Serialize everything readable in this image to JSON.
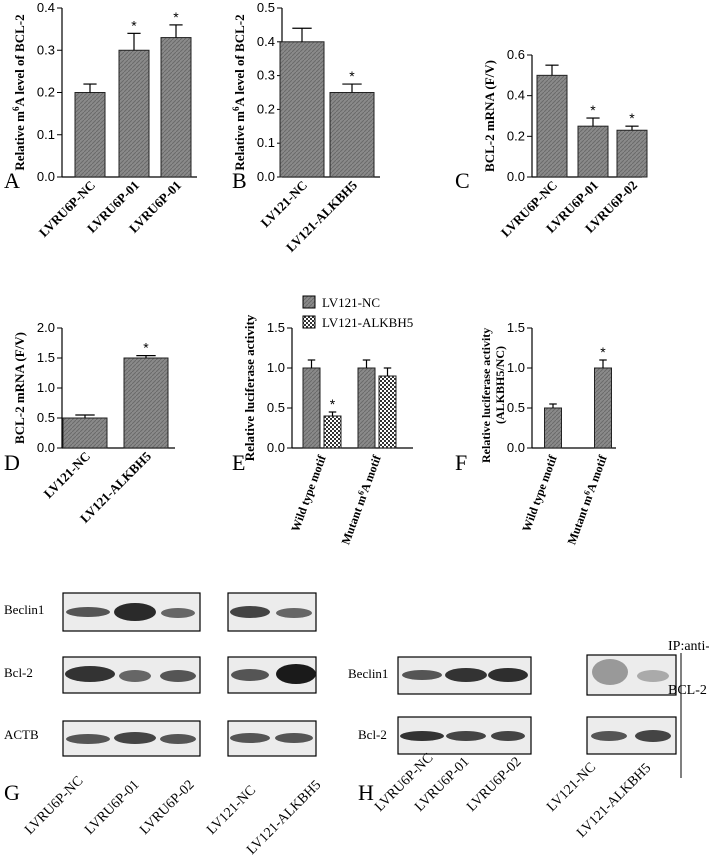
{
  "chart_data": [
    {
      "panel": "A",
      "type": "bar",
      "ylabel_pre": "Relative m",
      "ylabel_sup": "6",
      "ylabel_post": "A level of BCL-2",
      "categories": [
        "LVRU6P-NC",
        "LVRU6P-01",
        "LVRU6P-01"
      ],
      "values": [
        0.2,
        0.3,
        0.33
      ],
      "errors": [
        0.02,
        0.04,
        0.03
      ],
      "significant": [
        false,
        true,
        true
      ],
      "ylim": [
        0,
        0.4
      ],
      "yticks": [
        "0.0",
        "0.1",
        "0.2",
        "0.3",
        "0.4"
      ]
    },
    {
      "panel": "B",
      "type": "bar",
      "ylabel_pre": "Relative m",
      "ylabel_sup": "6",
      "ylabel_post": "A level of BCL-2",
      "categories": [
        "LV121-NC",
        "LV121-ALKBH5"
      ],
      "values": [
        0.4,
        0.25
      ],
      "errors": [
        0.04,
        0.025
      ],
      "significant": [
        false,
        true
      ],
      "ylim": [
        0,
        0.5
      ],
      "yticks": [
        "0.0",
        "0.1",
        "0.2",
        "0.3",
        "0.4",
        "0.5"
      ]
    },
    {
      "panel": "C",
      "type": "bar",
      "ylabel_pre": "BCL-2 mRNA (F/V)",
      "ylabel_sup": "",
      "ylabel_post": "",
      "categories": [
        "LVRU6P-NC",
        "LVRU6P-01",
        "LVRU6P-02"
      ],
      "values": [
        0.5,
        0.25,
        0.23
      ],
      "errors": [
        0.05,
        0.04,
        0.02
      ],
      "significant": [
        false,
        true,
        true
      ],
      "ylim": [
        0,
        0.6
      ],
      "yticks": [
        "0.0",
        "0.2",
        "0.4",
        "0.6"
      ]
    },
    {
      "panel": "D",
      "type": "bar",
      "ylabel_pre": "BCL-2 mRNA (F/V)",
      "ylabel_sup": "",
      "ylabel_post": "",
      "categories": [
        "LV121-NC",
        "LV121-ALKBH5"
      ],
      "values": [
        0.5,
        1.5
      ],
      "errors": [
        0.05,
        0.04
      ],
      "significant": [
        false,
        true
      ],
      "ylim": [
        0,
        2.0
      ],
      "yticks": [
        "0.0",
        "0.5",
        "1.0",
        "1.5",
        "2.0"
      ]
    },
    {
      "panel": "E",
      "type": "bar",
      "ylabel_pre": "Relative luciferase activity",
      "ylabel_sup": "",
      "ylabel_post": "",
      "categories": [
        {
          "pre": "Wild type motif",
          "sup": "",
          "post": ""
        },
        {
          "pre": "Mutant m",
          "sup": "6",
          "post": "A motif"
        }
      ],
      "series": [
        {
          "name": "LV121-NC",
          "values": [
            1.0,
            1.0
          ],
          "errors": [
            0.1,
            0.1
          ],
          "significant": [
            false,
            false
          ]
        },
        {
          "name": "LV121-ALKBH5",
          "values": [
            0.4,
            0.9
          ],
          "errors": [
            0.05,
            0.1
          ],
          "significant": [
            true,
            false
          ]
        }
      ],
      "ylim": [
        0,
        1.5
      ],
      "yticks": [
        "0.0",
        "0.5",
        "1.0",
        "1.5"
      ]
    },
    {
      "panel": "F",
      "type": "bar",
      "ylabel_pre": "Relative luciferase activity",
      "ylabel2": "(ALKBH5/NC)",
      "categories": [
        {
          "pre": "Wild type motif",
          "sup": "",
          "post": ""
        },
        {
          "pre": "Mutant m",
          "sup": "6",
          "post": "A motif"
        }
      ],
      "values": [
        0.5,
        1.0
      ],
      "errors": [
        0.05,
        0.1
      ],
      "significant": [
        false,
        true
      ],
      "ylim": [
        0,
        1.5
      ],
      "yticks": [
        "0.0",
        "0.5",
        "1.0",
        "1.5"
      ]
    }
  ],
  "blot_g": {
    "panel": "G",
    "rows": [
      "Beclin1",
      "Bcl-2",
      "ACTB"
    ],
    "lanes": [
      "LVRU6P-NC",
      "LVRU6P-01",
      "LVRU6P-02",
      "LV121-NC",
      "LV121-ALKBH5"
    ]
  },
  "blot_h": {
    "panel": "H",
    "rows": [
      "Beclin1",
      "Bcl-2"
    ],
    "lanes": [
      "LVRU6P-NC",
      "LVRU6P-01",
      "LVRU6P-02",
      "LV121-NC",
      "LV121-ALKBH5"
    ],
    "ip_line1": "IP:anti-",
    "ip_line2": "BCL-2"
  },
  "star": "*"
}
